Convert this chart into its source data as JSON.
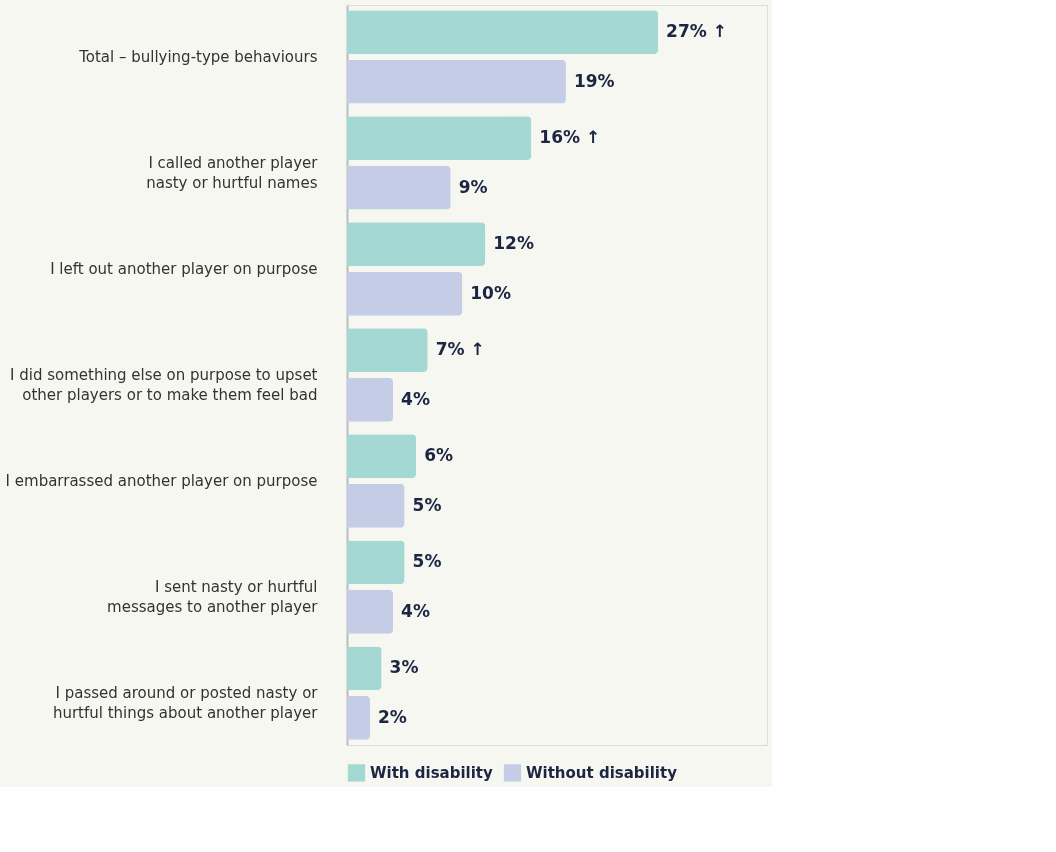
{
  "chart_data": {
    "type": "bar",
    "orientation": "horizontal",
    "categories": [
      "Total – bullying-type behaviours",
      "I called another player\nnasty or hurtful names",
      "I left out another player on purpose",
      "I did something else on purpose to upset\nother players or to make them feel bad",
      "I embarrassed another player on purpose",
      "I sent nasty or hurtful\nmessages to another player",
      "I passed around or posted nasty or\nhurtful things about another player"
    ],
    "series": [
      {
        "name": "With disability",
        "color": "#a3d8d3",
        "values": [
          27,
          16,
          12,
          7,
          6,
          5,
          3
        ],
        "value_labels": [
          "27% ↑",
          "16% ↑",
          "12%",
          "7% ↑",
          "6%",
          "5%",
          "3%"
        ]
      },
      {
        "name": "Without disability",
        "color": "#c5cde6",
        "values": [
          19,
          9,
          10,
          4,
          5,
          4,
          2
        ],
        "value_labels": [
          "19%",
          "9%",
          "10%",
          "4%",
          "5%",
          "4%",
          "2%"
        ]
      }
    ],
    "legend": "bottom",
    "grid": false
  }
}
